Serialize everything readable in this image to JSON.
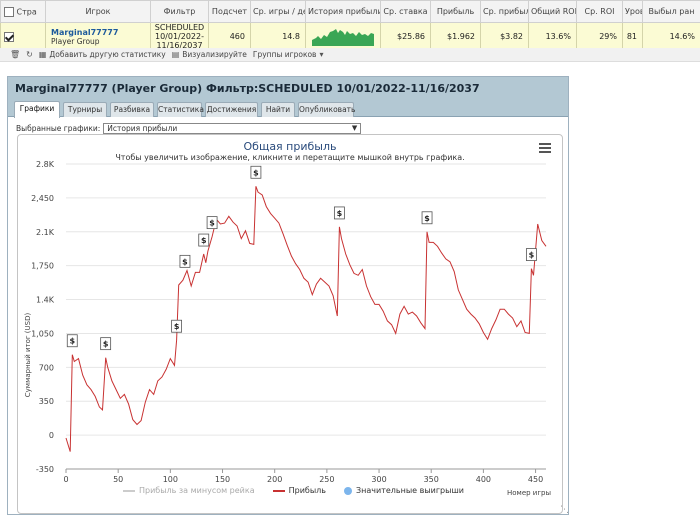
{
  "grid": {
    "headers": [
      "Стра",
      "Игрок",
      "Фильтр",
      "Подсчет",
      "Ср. игры / де",
      "История прибыли",
      "Ср. ставка",
      "Прибыль",
      "Ср. прибыль",
      "Общий ROI",
      "Ср. ROI",
      "Уров",
      "Выбыл ран"
    ],
    "row": {
      "player_name": "Marginal77777",
      "player_group": "Player Group",
      "filter": "SCHEDULED 10/01/2022-11/16/2037",
      "count": "460",
      "avg_games_day": "14.8",
      "avg_stake": "$25.86",
      "profit": "$1.962",
      "avg_profit": "$3.82",
      "total_roi": "13.6%",
      "avg_roi": "29%",
      "level": "81",
      "early_out": "14.6%"
    }
  },
  "toolbar": {
    "add_stat": "Добавить другую статистику",
    "visualize": "Визуализируйте",
    "groups": "Группы игроков"
  },
  "panel": {
    "title": "Marginal77777 (Player Group) Фильтр:SCHEDULED 10/01/2022-11/16/2037",
    "tabs": [
      "Графики",
      "Турниры",
      "Разбивка",
      "Статистика",
      "Достижения",
      "Найти",
      "Опубликовать"
    ],
    "select_label": "Выбранные графики:",
    "select_value": "История прибыли",
    "legend": {
      "rake": "Прибыль за минусом рейка",
      "profit": "Прибыль",
      "big_wins": "Значительные выигрыши"
    }
  },
  "chart_data": {
    "type": "line",
    "title": "Общая прибыль",
    "subtitle": "Чтобы увеличить изображение, кликните и перетащите мышкой внутрь графика.",
    "xlabel": "Номер игры",
    "ylabel": "Суммарный итог (USD)",
    "xlim": [
      0,
      460
    ],
    "ylim": [
      -350,
      2800
    ],
    "x_ticks": [
      0,
      50,
      100,
      150,
      200,
      250,
      300,
      350,
      400,
      450
    ],
    "y_ticks": [
      -350,
      0,
      350,
      700,
      1050,
      1400,
      1750,
      2100,
      2450,
      2800
    ],
    "y_tick_labels": [
      "-350",
      "0",
      "350",
      "700",
      "1,050",
      "1.4K",
      "1,750",
      "2.1K",
      "2,450",
      "2.8K"
    ],
    "grid": true,
    "legend_position": "bottom",
    "colors": {
      "profit": "#c83232",
      "rake": "#cccccc",
      "big_wins": "#7cb5ec"
    },
    "series": [
      {
        "name": "Прибыль",
        "x": [
          0,
          4,
          6,
          8,
          12,
          16,
          20,
          24,
          28,
          32,
          35,
          38,
          40,
          44,
          48,
          52,
          56,
          60,
          64,
          68,
          72,
          76,
          80,
          84,
          88,
          92,
          96,
          100,
          104,
          106,
          108,
          112,
          116,
          120,
          124,
          128,
          132,
          134,
          136,
          140,
          144,
          148,
          152,
          156,
          160,
          164,
          168,
          172,
          176,
          180,
          182,
          184,
          188,
          192,
          196,
          200,
          204,
          208,
          212,
          216,
          220,
          224,
          228,
          232,
          236,
          240,
          244,
          248,
          252,
          256,
          260,
          262,
          264,
          268,
          272,
          276,
          280,
          284,
          288,
          292,
          296,
          300,
          304,
          308,
          312,
          316,
          320,
          324,
          328,
          332,
          336,
          340,
          344,
          346,
          348,
          352,
          356,
          360,
          364,
          368,
          372,
          376,
          380,
          384,
          388,
          392,
          396,
          400,
          404,
          408,
          412,
          416,
          420,
          424,
          428,
          432,
          436,
          440,
          444,
          446,
          448,
          452,
          456,
          460
        ],
        "values": [
          -30,
          -170,
          830,
          760,
          790,
          620,
          520,
          470,
          400,
          290,
          260,
          800,
          700,
          560,
          470,
          380,
          420,
          320,
          160,
          110,
          150,
          340,
          470,
          420,
          560,
          600,
          680,
          790,
          720,
          980,
          1550,
          1600,
          1700,
          1540,
          1680,
          1680,
          1870,
          1780,
          1900,
          2050,
          2230,
          2180,
          2190,
          2260,
          2200,
          2160,
          2030,
          2110,
          1980,
          1970,
          2570,
          2510,
          2480,
          2360,
          2290,
          2240,
          2190,
          2080,
          1960,
          1850,
          1770,
          1710,
          1620,
          1580,
          1450,
          1560,
          1620,
          1580,
          1540,
          1440,
          1230,
          2150,
          2030,
          1870,
          1760,
          1670,
          1650,
          1710,
          1540,
          1430,
          1350,
          1350,
          1280,
          1180,
          1140,
          1050,
          1250,
          1330,
          1250,
          1270,
          1230,
          1160,
          1100,
          2100,
          1990,
          1990,
          1950,
          1880,
          1820,
          1790,
          1690,
          1500,
          1400,
          1300,
          1250,
          1210,
          1150,
          1060,
          990,
          1100,
          1190,
          1300,
          1300,
          1250,
          1210,
          1120,
          1180,
          1060,
          1050,
          1720,
          1650,
          2180,
          2010,
          1950
        ]
      }
    ],
    "big_wins_at": [
      6,
      38,
      106,
      114,
      132,
      140,
      182,
      262,
      346,
      446
    ]
  }
}
